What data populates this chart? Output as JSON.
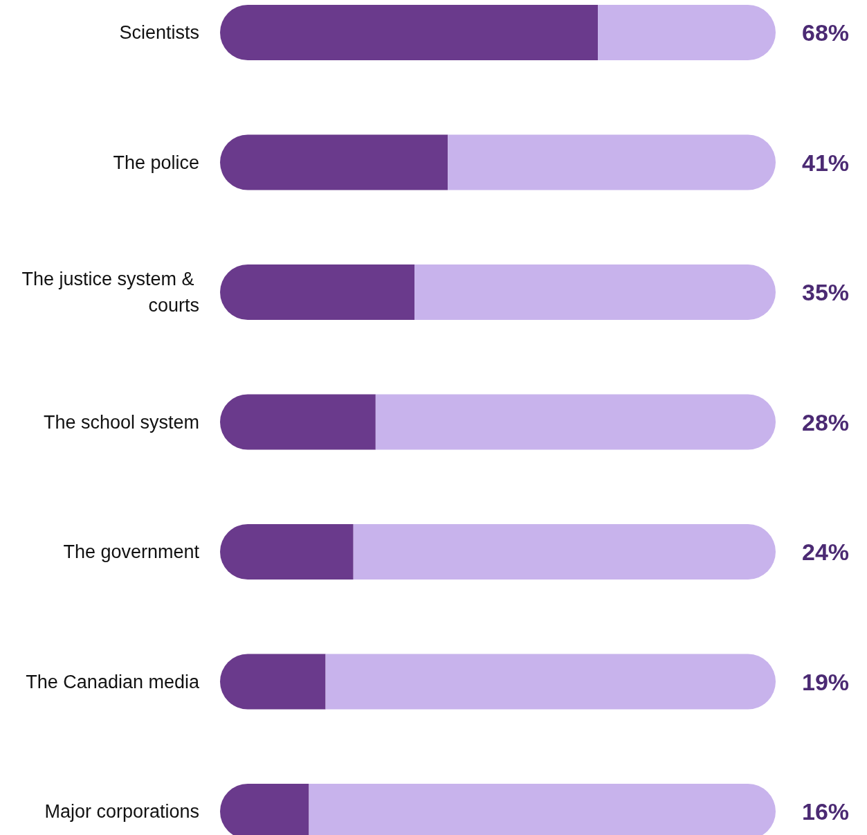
{
  "chart_data": {
    "type": "bar",
    "orientation": "horizontal",
    "categories": [
      "Scientists",
      "The police",
      "The justice system & courts",
      "The school system",
      "The government",
      "The Canadian media",
      "Major corporations"
    ],
    "series": [
      {
        "color": "#6a3a8c",
        "values": [
          68,
          41,
          35,
          28,
          24,
          19,
          16
        ],
        "value_labels": [
          "68%",
          "41%",
          "35%",
          "28%",
          "24%",
          "19%",
          "16%"
        ]
      },
      {
        "color": "#c8b3ec",
        "values": [
          32,
          59,
          65,
          72,
          76,
          81,
          84
        ]
      }
    ],
    "stacked": true,
    "xlim": [
      0,
      100
    ],
    "tick_labels": "y"
  }
}
